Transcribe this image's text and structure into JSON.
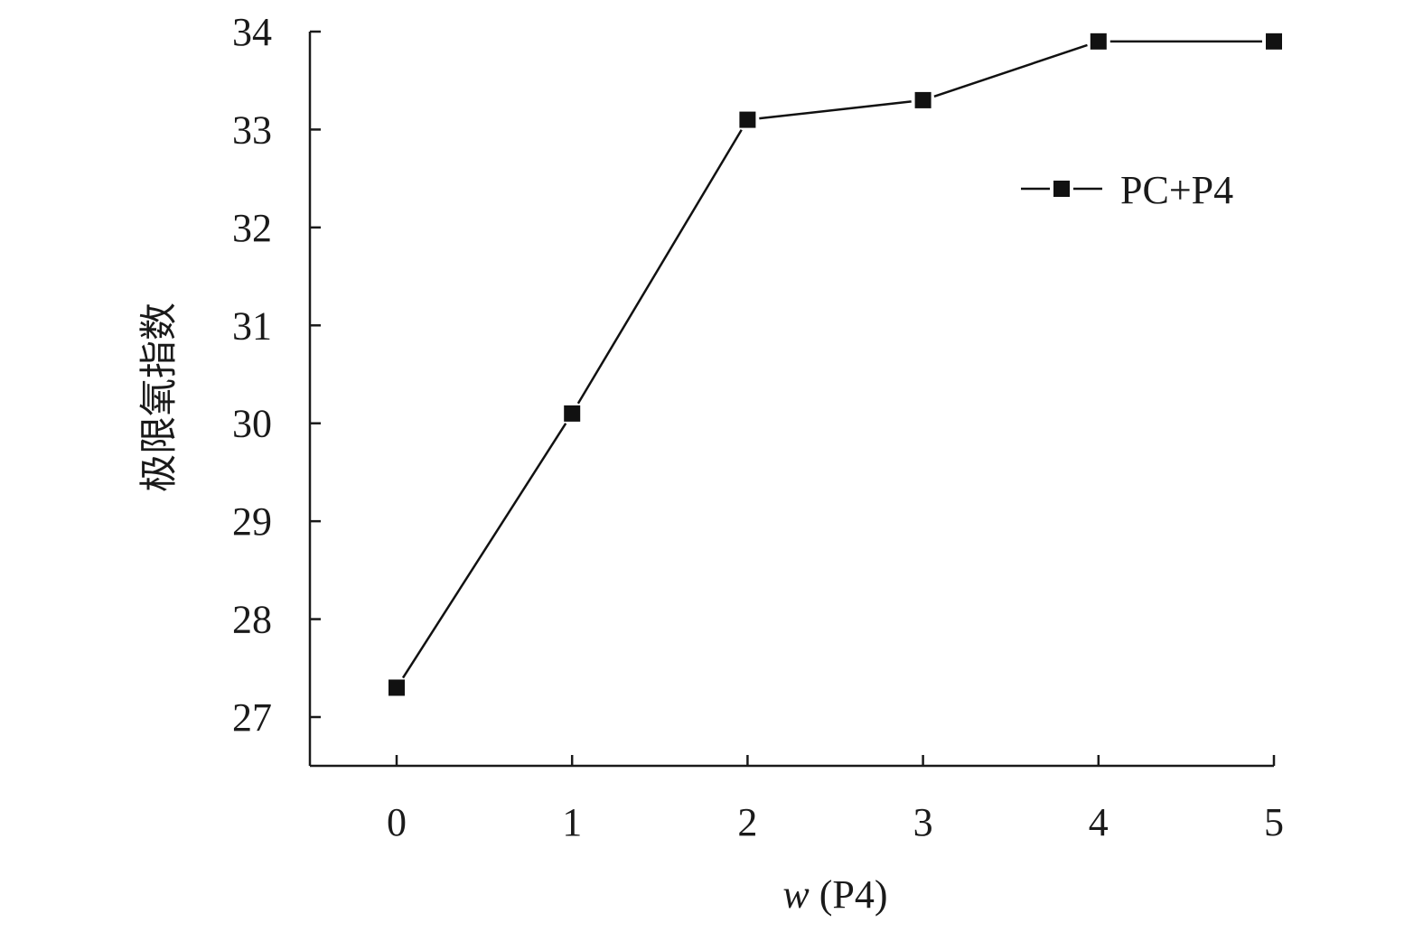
{
  "chart_data": {
    "type": "line",
    "x": [
      0,
      1,
      2,
      3,
      4,
      5
    ],
    "series": [
      {
        "name": "PC+P4",
        "values": [
          27.3,
          30.1,
          33.1,
          33.3,
          33.9,
          33.9
        ]
      }
    ],
    "xlabel": {
      "var": "w",
      "rest": " (P4)"
    },
    "ylabel": "极限氧指数",
    "xlim": [
      -0.5,
      5
    ],
    "ylim": [
      26.5,
      34
    ],
    "xticks": [
      "0",
      "1",
      "2",
      "3",
      "4",
      "5"
    ],
    "yticks": [
      "27",
      "28",
      "29",
      "30",
      "31",
      "32",
      "33",
      "34"
    ],
    "marker": "square",
    "color": "#111111",
    "grid": false,
    "legend_position": "top-right"
  }
}
